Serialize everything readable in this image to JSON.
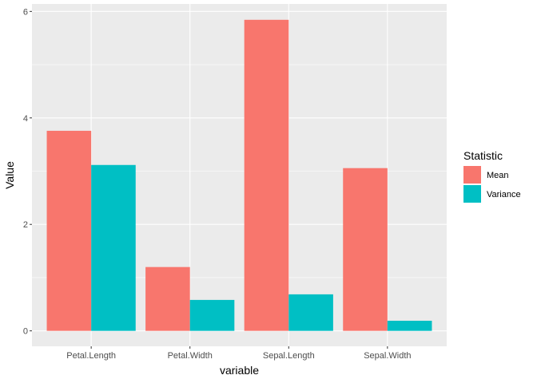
{
  "chart_data": {
    "type": "bar",
    "title": "",
    "xlabel": "variable",
    "ylabel": "Value",
    "categories": [
      "Petal.Length",
      "Petal.Width",
      "Sepal.Length",
      "Sepal.Width"
    ],
    "series": [
      {
        "name": "Mean",
        "color": "#F8766D",
        "values": [
          3.758,
          1.199,
          5.843,
          3.057
        ]
      },
      {
        "name": "Variance",
        "color": "#00BFC4",
        "values": [
          3.116,
          0.581,
          0.686,
          0.19
        ]
      }
    ],
    "ylim": [
      -0.29,
      6.14
    ],
    "yticks": [
      0,
      2,
      4,
      6
    ],
    "ytick_labels": [
      "0",
      "2",
      "4",
      "6"
    ],
    "grid": true,
    "legend": {
      "title": "Statistic",
      "position": "right"
    }
  }
}
